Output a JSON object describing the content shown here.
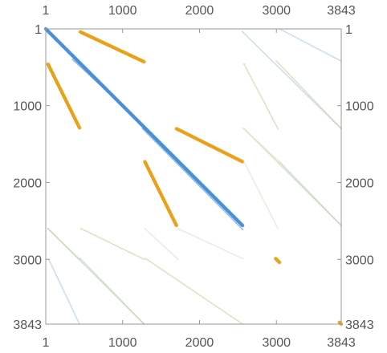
{
  "chart_data": {
    "type": "scatter",
    "title": "",
    "xlabel": "",
    "ylabel": "",
    "xlim": [
      1,
      3843
    ],
    "ylim": [
      1,
      3843
    ],
    "y_axis_reversed": true,
    "grid": false,
    "legend": "none",
    "frame_ticks": {
      "top": [
        "1",
        "1000",
        "2000",
        "3000",
        "3843"
      ],
      "bottom": [
        "1",
        "1000",
        "2000",
        "3000",
        "3843"
      ],
      "left": [
        "1",
        "1000",
        "2000",
        "3000",
        "3843"
      ],
      "right": [
        "1",
        "1000",
        "2000",
        "3000",
        "3843"
      ]
    },
    "tick_values": [
      1,
      1000,
      2000,
      3000,
      3843
    ],
    "colors": {
      "blue": "#4a8fd8",
      "orange": "#e8a21b",
      "light_blue": "#a8cbe6",
      "light_olive": "#c9cf9e",
      "pale_green": "#d8e2cc"
    },
    "series": [
      {
        "color_key": "blue",
        "segments": [
          {
            "x": [
              1,
              2560
            ],
            "y": [
              1,
              2560
            ],
            "density": "dense"
          },
          {
            "x": [
              350,
              1000
            ],
            "y": [
              400,
              1000
            ],
            "density": "light"
          },
          {
            "x": [
              1260,
              2560
            ],
            "y": [
              1300,
              2610
            ],
            "density": "light"
          }
        ]
      },
      {
        "color_key": "orange",
        "segments": [
          {
            "x": [
              450,
              1280
            ],
            "y": [
              40,
              430
            ],
            "density": "dense"
          },
          {
            "x": [
              1700,
              2560
            ],
            "y": [
              1300,
              1730
            ],
            "density": "dense"
          },
          {
            "x": [
              30,
              440
            ],
            "y": [
              460,
              1290
            ],
            "density": "dense"
          },
          {
            "x": [
              1290,
              1700
            ],
            "y": [
              1730,
              2560
            ],
            "density": "dense"
          },
          {
            "x": [
              2990,
              3040
            ],
            "y": [
              2990,
              3040
            ],
            "density": "dense"
          },
          {
            "x": [
              3820,
              3843
            ],
            "y": [
              3820,
              3843
            ],
            "density": "dense"
          }
        ]
      },
      {
        "color_key": "light_blue",
        "segments": [
          {
            "x": [
              2560,
              3843
            ],
            "y": [
              40,
              1300
            ],
            "density": "light"
          },
          {
            "x": [
              3040,
              3843
            ],
            "y": [
              1,
              420
            ],
            "density": "light"
          },
          {
            "x": [
              3040,
              3843
            ],
            "y": [
              1730,
              2560
            ],
            "density": "light"
          },
          {
            "x": [
              450,
              1280
            ],
            "y": [
              2990,
              3843
            ],
            "density": "light"
          },
          {
            "x": [
              30,
              440
            ],
            "y": [
              2600,
              3000
            ],
            "density": "light"
          },
          {
            "x": [
              40,
              440
            ],
            "y": [
              3000,
              3843
            ],
            "density": "light"
          }
        ]
      },
      {
        "color_key": "light_olive",
        "segments": [
          {
            "x": [
              2580,
              3020
            ],
            "y": [
              460,
              1300
            ],
            "density": "light"
          },
          {
            "x": [
              3000,
              3843
            ],
            "y": [
              420,
              1300
            ],
            "density": "light"
          },
          {
            "x": [
              2580,
              3843
            ],
            "y": [
              1300,
              2560
            ],
            "density": "light"
          },
          {
            "x": [
              460,
              1280
            ],
            "y": [
              2600,
              3000
            ],
            "density": "light"
          },
          {
            "x": [
              30,
              1280
            ],
            "y": [
              2600,
              3843
            ],
            "density": "light"
          },
          {
            "x": [
              1300,
              2560
            ],
            "y": [
              2990,
              3843
            ],
            "density": "light"
          }
        ]
      },
      {
        "color_key": "pale_green",
        "segments": [
          {
            "x": [
              1290,
              1720
            ],
            "y": [
              2600,
              3000
            ],
            "density": "light"
          },
          {
            "x": [
              1720,
              2560
            ],
            "y": [
              2600,
              2990
            ],
            "density": "light"
          },
          {
            "x": [
              2560,
              3040
            ],
            "y": [
              1290,
              1730
            ],
            "density": "light"
          },
          {
            "x": [
              2580,
              3020
            ],
            "y": [
              1730,
              2600
            ],
            "density": "light"
          }
        ]
      }
    ]
  }
}
